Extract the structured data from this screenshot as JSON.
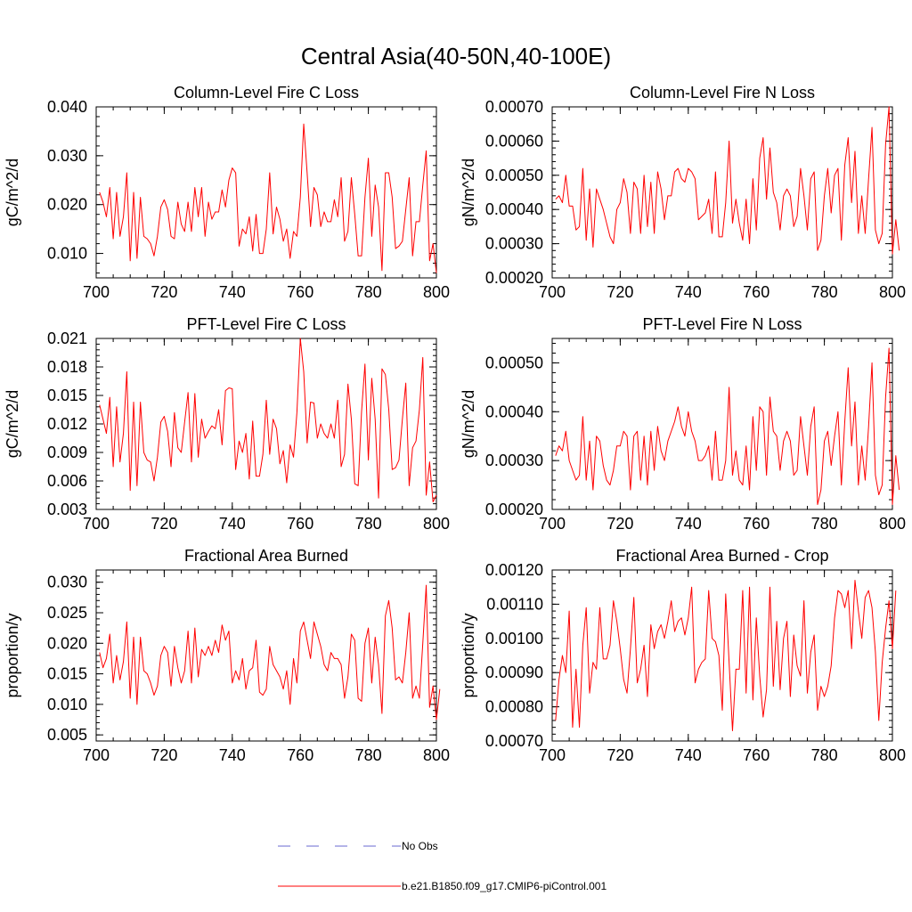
{
  "main_title": "Central Asia(40-50N,40-100E)",
  "colors": {
    "series": "#ff0000",
    "obs": "#6a6ad0",
    "axis": "#000000"
  },
  "legend": [
    {
      "label": "No Obs",
      "style": "dashed",
      "color": "#6a6ad0"
    },
    {
      "label": "b.e21.B1850.f09_g17.CMIP6-piControl.001",
      "style": "solid",
      "color": "#ff0000"
    }
  ],
  "chart_data": [
    {
      "type": "line",
      "title": "Column-Level Fire C Loss",
      "ylabel": "gC/m^2/d",
      "xlabel": "",
      "xlim": [
        700,
        800
      ],
      "xticks": [
        "700",
        "720",
        "740",
        "760",
        "780",
        "800"
      ],
      "ylim": [
        0.005,
        0.04
      ],
      "yticks": [
        "0.010",
        "0.020",
        "0.030",
        "0.040"
      ],
      "x_start": 701,
      "series": [
        {
          "name": "b.e21.B1850.f09_g17.CMIP6-piControl.001",
          "values": [
            0.0225,
            0.0205,
            0.0175,
            0.0235,
            0.013,
            0.0225,
            0.0135,
            0.0175,
            0.0265,
            0.0085,
            0.0225,
            0.009,
            0.0215,
            0.0135,
            0.013,
            0.012,
            0.0095,
            0.0135,
            0.0195,
            0.021,
            0.019,
            0.0135,
            0.013,
            0.0205,
            0.016,
            0.0145,
            0.0205,
            0.0145,
            0.0235,
            0.0175,
            0.0235,
            0.0135,
            0.0205,
            0.017,
            0.0185,
            0.0185,
            0.023,
            0.0195,
            0.025,
            0.0275,
            0.0265,
            0.0115,
            0.015,
            0.014,
            0.0175,
            0.0105,
            0.018,
            0.01,
            0.01,
            0.015,
            0.0265,
            0.014,
            0.0195,
            0.017,
            0.0125,
            0.015,
            0.009,
            0.0145,
            0.0135,
            0.0215,
            0.0365,
            0.0265,
            0.0155,
            0.0235,
            0.022,
            0.0155,
            0.0185,
            0.0165,
            0.0165,
            0.021,
            0.0175,
            0.0255,
            0.0125,
            0.0145,
            0.0255,
            0.018,
            0.0095,
            0.0095,
            0.0215,
            0.0295,
            0.0135,
            0.024,
            0.0195,
            0.0065,
            0.0265,
            0.0265,
            0.0215,
            0.011,
            0.0115,
            0.0125,
            0.019,
            0.0255,
            0.0095,
            0.0165,
            0.0165,
            0.024,
            0.031,
            0.0085,
            0.012,
            0.006
          ]
        }
      ]
    },
    {
      "type": "line",
      "title": "Column-Level Fire N Loss",
      "ylabel": "gN/m^2/d",
      "xlabel": "",
      "xlim": [
        700,
        800
      ],
      "xticks": [
        "700",
        "720",
        "740",
        "760",
        "780",
        "800"
      ],
      "ylim": [
        0.0002,
        0.0007
      ],
      "yticks": [
        "0.00020",
        "0.00030",
        "0.00040",
        "0.00050",
        "0.00060",
        "0.00070"
      ],
      "x_start": 701,
      "series": [
        {
          "name": "b.e21.B1850.f09_g17.CMIP6-piControl.001",
          "values": [
            0.00043,
            0.00044,
            0.00042,
            0.0005,
            0.00041,
            0.00041,
            0.00034,
            0.00035,
            0.00052,
            0.00031,
            0.00046,
            0.00029,
            0.00046,
            0.00043,
            0.0004,
            0.00036,
            0.00032,
            0.0003,
            0.0004,
            0.00042,
            0.00049,
            0.00045,
            0.00033,
            0.00048,
            0.00046,
            0.00033,
            0.0005,
            0.00035,
            0.00048,
            0.00033,
            0.00051,
            0.00046,
            0.00037,
            0.00044,
            0.00044,
            0.00051,
            0.00052,
            0.00049,
            0.00048,
            0.00052,
            0.00051,
            0.00049,
            0.00037,
            0.00038,
            0.00039,
            0.00043,
            0.00033,
            0.00051,
            0.00032,
            0.00032,
            0.00042,
            0.0006,
            0.00036,
            0.00043,
            0.00036,
            0.00031,
            0.00043,
            0.0003,
            0.00049,
            0.00034,
            0.00055,
            0.00061,
            0.00043,
            0.00058,
            0.00045,
            0.00042,
            0.00034,
            0.00044,
            0.00046,
            0.00044,
            0.00035,
            0.00038,
            0.00052,
            0.00044,
            0.00034,
            0.00049,
            0.00051,
            0.00028,
            0.00031,
            0.00044,
            0.00052,
            0.00039,
            0.0005,
            0.00052,
            0.00031,
            0.00053,
            0.00061,
            0.00042,
            0.00057,
            0.00033,
            0.00044,
            0.00033,
            0.00049,
            0.00064,
            0.00034,
            0.0003,
            0.00033,
            0.00059,
            0.0007,
            0.00027,
            0.00037,
            0.00028
          ]
        }
      ]
    },
    {
      "type": "line",
      "title": "PFT-Level Fire C Loss",
      "ylabel": "gC/m^2/d",
      "xlabel": "",
      "xlim": [
        700,
        800
      ],
      "xticks": [
        "700",
        "720",
        "740",
        "760",
        "780",
        "800"
      ],
      "ylim": [
        0.003,
        0.021
      ],
      "yticks": [
        "0.003",
        "0.006",
        "0.009",
        "0.012",
        "0.015",
        "0.018",
        "0.021"
      ],
      "x_start": 701,
      "series": [
        {
          "name": "b.e21.B1850.f09_g17.CMIP6-piControl.001",
          "values": [
            0.014,
            0.0125,
            0.011,
            0.0148,
            0.0075,
            0.0138,
            0.008,
            0.011,
            0.0175,
            0.005,
            0.0143,
            0.0055,
            0.0143,
            0.009,
            0.0082,
            0.008,
            0.006,
            0.0085,
            0.0122,
            0.0128,
            0.0112,
            0.0075,
            0.0132,
            0.0095,
            0.009,
            0.0122,
            0.0153,
            0.008,
            0.0152,
            0.0085,
            0.0125,
            0.0105,
            0.0112,
            0.0118,
            0.0115,
            0.0135,
            0.0098,
            0.0155,
            0.0158,
            0.0157,
            0.0072,
            0.0102,
            0.009,
            0.011,
            0.0062,
            0.0123,
            0.0065,
            0.0065,
            0.0088,
            0.0145,
            0.0088,
            0.0125,
            0.0115,
            0.0078,
            0.0092,
            0.0058,
            0.0098,
            0.0085,
            0.0132,
            0.021,
            0.0175,
            0.01,
            0.0143,
            0.0142,
            0.0105,
            0.012,
            0.011,
            0.0105,
            0.012,
            0.0105,
            0.0145,
            0.0075,
            0.0088,
            0.0162,
            0.0125,
            0.0057,
            0.0055,
            0.0133,
            0.0183,
            0.0082,
            0.0168,
            0.0125,
            0.0042,
            0.0178,
            0.0172,
            0.0135,
            0.0072,
            0.0074,
            0.0082,
            0.0125,
            0.0163,
            0.0055,
            0.0095,
            0.0102,
            0.0135,
            0.019,
            0.0045,
            0.008,
            0.0038,
            0.0045
          ]
        }
      ]
    },
    {
      "type": "line",
      "title": "PFT-Level Fire N Loss",
      "ylabel": "gN/m^2/d",
      "xlabel": "",
      "xlim": [
        700,
        800
      ],
      "xticks": [
        "700",
        "720",
        "740",
        "760",
        "780",
        "800"
      ],
      "ylim": [
        0.0002,
        0.00055
      ],
      "yticks": [
        "0.00020",
        "0.00030",
        "0.00040",
        "0.00050"
      ],
      "x_start": 701,
      "series": [
        {
          "name": "b.e21.B1850.f09_g17.CMIP6-piControl.001",
          "values": [
            0.00031,
            0.00033,
            0.00032,
            0.00036,
            0.0003,
            0.00028,
            0.00026,
            0.00027,
            0.00039,
            0.00026,
            0.00034,
            0.00024,
            0.00035,
            0.00034,
            0.00029,
            0.00026,
            0.00025,
            0.00028,
            0.00033,
            0.00033,
            0.00036,
            0.00035,
            0.00024,
            0.00035,
            0.00036,
            0.00026,
            0.00035,
            0.00025,
            0.00036,
            0.00028,
            0.00037,
            0.00032,
            0.0003,
            0.00034,
            0.00036,
            0.00038,
            0.00041,
            0.00037,
            0.00035,
            0.0004,
            0.00036,
            0.00034,
            0.0003,
            0.0003,
            0.00031,
            0.00033,
            0.00026,
            0.00036,
            0.00026,
            0.00026,
            0.0003,
            0.00045,
            0.00027,
            0.00032,
            0.00026,
            0.00025,
            0.00033,
            0.00024,
            0.00039,
            0.00028,
            0.00041,
            0.0004,
            0.00027,
            0.00043,
            0.00036,
            0.00035,
            0.00028,
            0.00034,
            0.00036,
            0.00034,
            0.00027,
            0.00028,
            0.00039,
            0.00033,
            0.00027,
            0.00037,
            0.00041,
            0.00021,
            0.00024,
            0.00034,
            0.00036,
            0.00029,
            0.00035,
            0.0004,
            0.00025,
            0.00038,
            0.00049,
            0.00033,
            0.00042,
            0.00025,
            0.00033,
            0.00026,
            0.00037,
            0.0005,
            0.00027,
            0.00023,
            0.00025,
            0.00043,
            0.00053,
            0.00021,
            0.00031,
            0.00024
          ]
        }
      ]
    },
    {
      "type": "line",
      "title": "Fractional Area Burned",
      "ylabel": "proportion/y",
      "xlabel": "",
      "xlim": [
        700,
        800
      ],
      "xticks": [
        "700",
        "720",
        "740",
        "760",
        "780",
        "800"
      ],
      "ylim": [
        0.004,
        0.032
      ],
      "yticks": [
        "0.005",
        "0.010",
        "0.015",
        "0.020",
        "0.025",
        "0.030"
      ],
      "x_start": 701,
      "series": [
        {
          "name": "b.e21.B1850.f09_g17.CMIP6-piControl.001",
          "values": [
            0.0185,
            0.016,
            0.0175,
            0.0215,
            0.0135,
            0.018,
            0.014,
            0.017,
            0.0235,
            0.011,
            0.021,
            0.01,
            0.021,
            0.0155,
            0.015,
            0.0135,
            0.0115,
            0.013,
            0.018,
            0.0195,
            0.0185,
            0.013,
            0.0195,
            0.016,
            0.0135,
            0.0155,
            0.022,
            0.0135,
            0.0225,
            0.0145,
            0.019,
            0.018,
            0.0195,
            0.018,
            0.0205,
            0.0185,
            0.023,
            0.0205,
            0.022,
            0.0135,
            0.0155,
            0.014,
            0.0175,
            0.0125,
            0.0155,
            0.016,
            0.0205,
            0.012,
            0.0115,
            0.0125,
            0.0195,
            0.0165,
            0.0155,
            0.0145,
            0.0125,
            0.0155,
            0.01,
            0.0175,
            0.0135,
            0.022,
            0.0235,
            0.0205,
            0.0175,
            0.0235,
            0.0215,
            0.0195,
            0.0165,
            0.0155,
            0.0185,
            0.0175,
            0.0175,
            0.0165,
            0.011,
            0.0145,
            0.0215,
            0.0205,
            0.011,
            0.0105,
            0.02,
            0.0225,
            0.0135,
            0.021,
            0.0165,
            0.0085,
            0.0245,
            0.027,
            0.0225,
            0.014,
            0.0145,
            0.0135,
            0.0185,
            0.025,
            0.011,
            0.013,
            0.011,
            0.02,
            0.0295,
            0.0095,
            0.013,
            0.0075,
            0.0125
          ]
        }
      ]
    },
    {
      "type": "line",
      "title": "Fractional Area Burned - Crop",
      "ylabel": "proportion/y",
      "xlabel": "",
      "xlim": [
        700,
        800
      ],
      "xticks": [
        "700",
        "720",
        "740",
        "760",
        "780",
        "800"
      ],
      "ylim": [
        0.0007,
        0.0012
      ],
      "yticks": [
        "0.00070",
        "0.00080",
        "0.00090",
        "0.00100",
        "0.00110",
        "0.00120"
      ],
      "x_start": 701,
      "series": [
        {
          "name": "b.e21.B1850.f09_g17.CMIP6-piControl.001",
          "values": [
            0.00076,
            0.00088,
            0.00095,
            0.0009,
            0.00108,
            0.00074,
            0.00091,
            0.00074,
            0.00098,
            0.00109,
            0.00084,
            0.00093,
            0.00091,
            0.00109,
            0.00094,
            0.00094,
            0.00098,
            0.00111,
            0.00105,
            0.00097,
            0.00088,
            0.00084,
            0.00097,
            0.00112,
            0.00087,
            0.00091,
            0.00098,
            0.00083,
            0.00104,
            0.00097,
            0.00102,
            0.00104,
            0.001,
            0.00105,
            0.00111,
            0.00102,
            0.00105,
            0.00106,
            0.00101,
            0.00106,
            0.00115,
            0.00087,
            0.00091,
            0.00093,
            0.00094,
            0.00114,
            0.001,
            0.00099,
            0.00095,
            0.00079,
            0.00113,
            0.00093,
            0.00073,
            0.00091,
            0.00091,
            0.00114,
            0.00084,
            0.00115,
            0.00082,
            0.00106,
            0.00089,
            0.00077,
            0.00085,
            0.00115,
            0.00086,
            0.00105,
            0.00085,
            0.001,
            0.00105,
            0.00083,
            0.00101,
            0.00092,
            0.00089,
            0.00111,
            0.00084,
            0.00096,
            0.00101,
            0.00079,
            0.00086,
            0.00083,
            0.00086,
            0.00092,
            0.00106,
            0.00114,
            0.00113,
            0.00109,
            0.00114,
            0.00097,
            0.00117,
            0.00108,
            0.001,
            0.00112,
            0.00114,
            0.00109,
            0.00096,
            0.00076,
            0.00093,
            0.00103,
            0.00111,
            0.00097,
            0.00114
          ]
        }
      ]
    }
  ]
}
